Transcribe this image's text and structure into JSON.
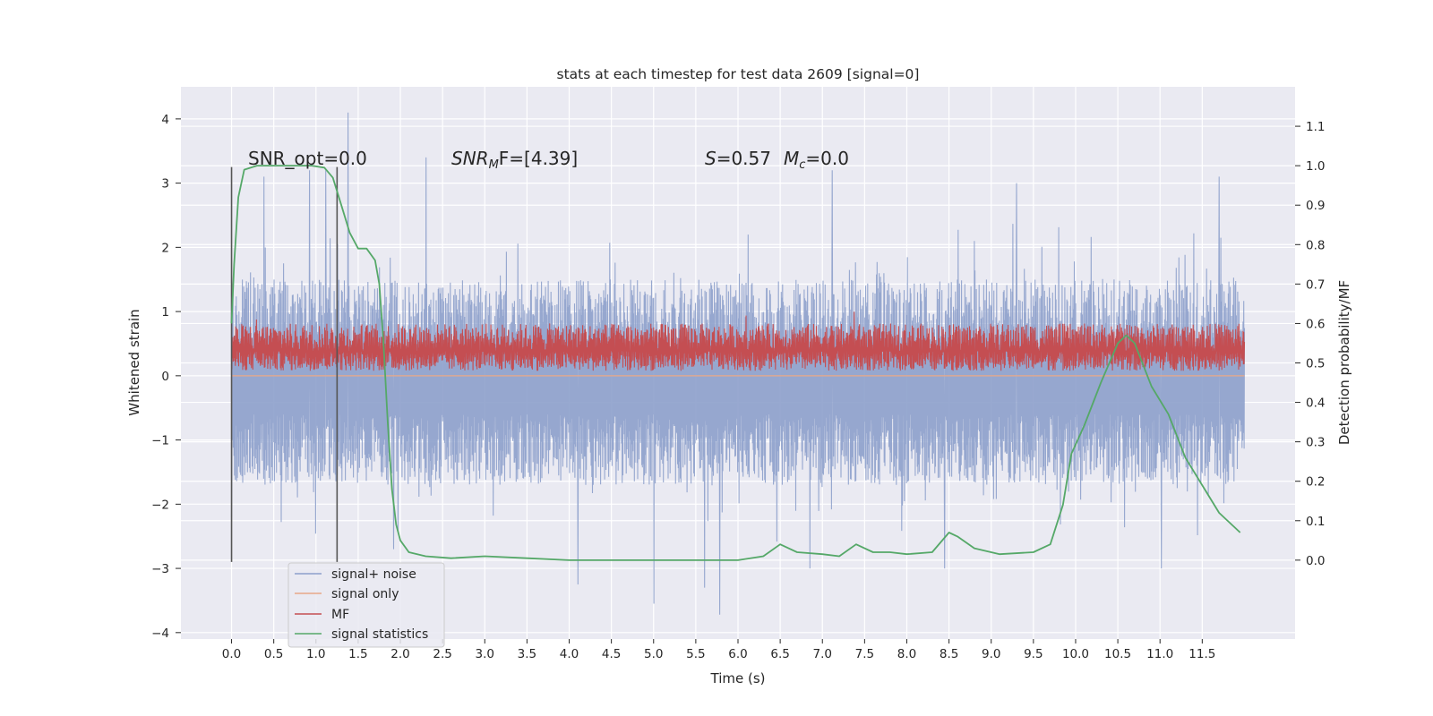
{
  "chart_data": {
    "type": "line",
    "title": "stats at each timestep for test data 2609 [signal=0]",
    "xlabel": "Time (s)",
    "ylabel_left": "Whitened strain",
    "ylabel_right": "Detection probability/MF",
    "xlim": [
      -0.6,
      12.6
    ],
    "ylim_left": [
      -4.1,
      4.5
    ],
    "ylim_right": [
      -0.2,
      1.2
    ],
    "x_ticks": [
      0.0,
      0.5,
      1.0,
      1.5,
      2.0,
      2.5,
      3.0,
      3.5,
      4.0,
      4.5,
      5.0,
      5.5,
      6.0,
      6.5,
      7.0,
      7.5,
      8.0,
      8.5,
      9.0,
      9.5,
      10.0,
      10.5,
      11.0,
      11.5
    ],
    "x_tick_labels": [
      "0.0",
      "0.5",
      "1.0",
      "1.5",
      "2.0",
      "2.5",
      "3.0",
      "3.5",
      "4.0",
      "4.5",
      "5.0",
      "5.5",
      "6.0",
      "6.5",
      "7.0",
      "7.5",
      "8.0",
      "8.5",
      "9.0",
      "9.5",
      "10.0",
      "10.5",
      "11.0",
      "11.5"
    ],
    "y_left_ticks": [
      4,
      3,
      2,
      1,
      0,
      -1,
      -2,
      -3,
      -4
    ],
    "y_left_tick_labels": [
      "4",
      "3",
      "2",
      "1",
      "0",
      "−1",
      "−2",
      "−3",
      "−4"
    ],
    "y_right_ticks": [
      1.1,
      1.0,
      0.9,
      0.8,
      0.7,
      0.6,
      0.5,
      0.4,
      0.3,
      0.2,
      0.1,
      0.0
    ],
    "y_right_tick_labels": [
      "1.1",
      "1.0",
      "0.9",
      "0.8",
      "0.7",
      "0.6",
      "0.5",
      "0.4",
      "0.3",
      "0.2",
      "0.1",
      "0.0"
    ],
    "grid": true,
    "legend_position": "lower-left",
    "series": [
      {
        "name": "signal+ noise",
        "axis": "left",
        "color": "#8da0cb",
        "x_range": [
          0.0,
          12.0
        ],
        "typical_range": [
          -1.6,
          1.4
        ],
        "peak_samples": [
          [
            0.0,
            2.5
          ],
          [
            0.0,
            -2.2
          ],
          [
            0.38,
            3.1
          ],
          [
            0.92,
            3.2
          ],
          [
            1.12,
            3.2
          ],
          [
            1.38,
            4.1
          ],
          [
            2.3,
            3.4
          ],
          [
            1.92,
            -2.7
          ],
          [
            4.1,
            -3.25
          ],
          [
            5.0,
            -3.55
          ],
          [
            5.78,
            -3.72
          ],
          [
            5.6,
            -3.3
          ],
          [
            6.45,
            3.25
          ],
          [
            7.12,
            3.2
          ],
          [
            6.85,
            -3.0
          ],
          [
            8.85,
            3.35
          ],
          [
            8.45,
            -3.0
          ],
          [
            9.3,
            3.0
          ],
          [
            11.7,
            3.1
          ],
          [
            11.02,
            -3.0
          ]
        ]
      },
      {
        "name": "signal only",
        "axis": "left",
        "color": "#e8a888",
        "x": [
          0.0,
          12.0
        ],
        "y": [
          0.0,
          0.0
        ]
      },
      {
        "name": "MF",
        "axis": "right",
        "color": "#c44e52",
        "x_range": [
          0.0,
          12.0
        ],
        "typical_range": [
          0.48,
          0.6
        ],
        "peak_samples": [
          [
            7.38,
            0.63
          ],
          [
            6.1,
            0.62
          ],
          [
            0.3,
            0.61
          ]
        ]
      },
      {
        "name": "signal statistics",
        "axis": "right",
        "color": "#55a868",
        "x": [
          0.0,
          0.03,
          0.08,
          0.15,
          0.3,
          0.6,
          0.95,
          1.1,
          1.2,
          1.3,
          1.4,
          1.5,
          1.6,
          1.7,
          1.75,
          1.8,
          1.85,
          1.9,
          1.95,
          2.0,
          2.1,
          2.3,
          2.6,
          3.0,
          3.5,
          4.0,
          4.5,
          5.0,
          5.5,
          6.0,
          6.3,
          6.5,
          6.7,
          7.0,
          7.2,
          7.4,
          7.6,
          7.8,
          8.0,
          8.3,
          8.5,
          8.6,
          8.8,
          9.1,
          9.5,
          9.7,
          9.85,
          9.95,
          10.1,
          10.3,
          10.5,
          10.6,
          10.7,
          10.9,
          11.1,
          11.3,
          11.5,
          11.7,
          11.95
        ],
        "y": [
          0.6,
          0.75,
          0.92,
          0.99,
          1.0,
          1.0,
          1.0,
          0.995,
          0.97,
          0.9,
          0.83,
          0.79,
          0.79,
          0.76,
          0.7,
          0.55,
          0.35,
          0.18,
          0.09,
          0.05,
          0.02,
          0.01,
          0.005,
          0.01,
          0.005,
          0.0,
          0.0,
          0.0,
          0.0,
          0.0,
          0.01,
          0.04,
          0.02,
          0.015,
          0.01,
          0.04,
          0.02,
          0.02,
          0.015,
          0.02,
          0.07,
          0.06,
          0.03,
          0.015,
          0.02,
          0.04,
          0.14,
          0.27,
          0.34,
          0.45,
          0.55,
          0.57,
          0.55,
          0.44,
          0.37,
          0.26,
          0.19,
          0.12,
          0.07
        ]
      }
    ],
    "vertical_lines": [
      {
        "x": 0.0,
        "y": [
          -2.9,
          3.25
        ]
      },
      {
        "x": 1.25,
        "y": [
          -2.9,
          3.25
        ]
      }
    ],
    "annotations": {
      "snr_opt": "SNR_opt=0.0",
      "snr_mf_base": "SNR",
      "snr_mf_sub": "M",
      "snr_mf_rest": "F=[4.39]",
      "s_label": "S",
      "s_value": "=0.57",
      "mc_base": "M",
      "mc_sub": "c",
      "mc_value": "=0.0"
    }
  }
}
